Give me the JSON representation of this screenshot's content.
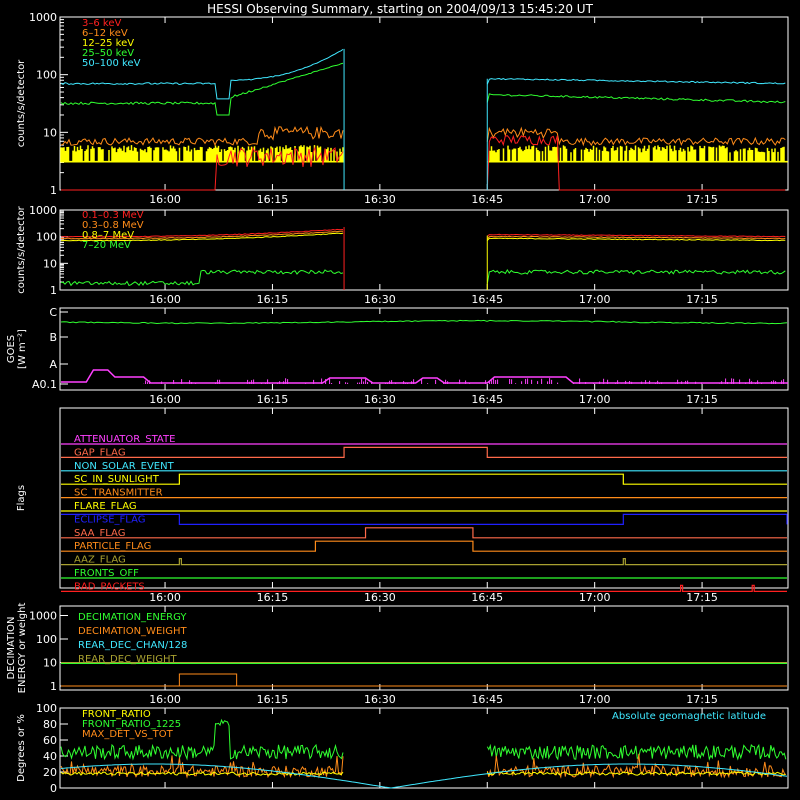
{
  "title": "HESSI Observing Summary, starting on 2004/09/13 15:45:20 UT",
  "colors": {
    "bg": "#000000",
    "axis": "#ffffff",
    "red": "#ff2020",
    "orange": "#ff8c1a",
    "yellow": "#ffff00",
    "green": "#30ff30",
    "cyan": "#40e8ff",
    "magenta": "#ff40ff",
    "blue": "#2020ff",
    "olive": "#a8a030",
    "salmon": "#ff6a4a"
  },
  "chart_data": [
    {
      "id": "lightcurve",
      "type": "line",
      "ylabel": "counts/s/detector",
      "yscale": "log",
      "ylim": [
        1,
        1000
      ],
      "yticks": [
        "1",
        "10",
        "100",
        "1000"
      ],
      "xticks": [
        "16:00",
        "16:15",
        "16:30",
        "16:45",
        "17:00",
        "17:15"
      ],
      "legend": [
        "3–6 keV",
        "6–12 keV",
        "12–25 keV",
        "25–50 keV",
        "50–100 keV"
      ],
      "gap": [
        "16:25",
        "16:45"
      ],
      "series": [
        {
          "name": "3–6 keV",
          "color": "red",
          "level": 1.0
        },
        {
          "name": "6–12 keV",
          "color": "orange",
          "level": 7
        },
        {
          "name": "12–25 keV",
          "color": "yellow",
          "level": 3.5
        },
        {
          "name": "25–50 keV",
          "color": "green",
          "level": 32
        },
        {
          "name": "50–100 keV",
          "color": "cyan",
          "level": 70
        }
      ]
    },
    {
      "id": "highenergy",
      "type": "line",
      "ylabel": "counts/s/detector",
      "yscale": "log",
      "ylim": [
        1,
        1000
      ],
      "yticks": [
        "1",
        "10",
        "100",
        "1000"
      ],
      "xticks": [
        "16:00",
        "16:15",
        "16:30",
        "16:45",
        "17:00",
        "17:15"
      ],
      "legend": [
        "0.1–0.3 MeV",
        "0.3–0.8 MeV",
        "0.8–7 MeV",
        "7–20 MeV"
      ],
      "series": [
        {
          "name": "0.1–0.3 MeV",
          "color": "red",
          "level": 100
        },
        {
          "name": "0.3–0.8 MeV",
          "color": "orange",
          "level": 85
        },
        {
          "name": "0.8–7 MeV",
          "color": "yellow",
          "level": 75
        },
        {
          "name": "7–20 MeV",
          "color": "green",
          "level": 1.6
        }
      ]
    },
    {
      "id": "goes",
      "type": "line",
      "ylabel_lines": [
        "GOES",
        "[W m⁻²]"
      ],
      "yticks": [
        "A0.1",
        "A",
        "B",
        "C"
      ],
      "xticks": [
        "16:00",
        "16:15",
        "16:30",
        "16:45",
        "17:00",
        "17:15"
      ]
    },
    {
      "id": "flags",
      "type": "line",
      "ylabel": "Flags",
      "xticks": [
        "16:00",
        "16:15",
        "16:30",
        "16:45",
        "17:00",
        "17:15"
      ],
      "flags": [
        {
          "label": "ATTENUATOR_STATE",
          "color": "magenta"
        },
        {
          "label": "GAP_FLAG",
          "color": "salmon"
        },
        {
          "label": "NON_SOLAR_EVENT",
          "color": "cyan"
        },
        {
          "label": "SC_IN_SUNLIGHT",
          "color": "yellow"
        },
        {
          "label": "SC_TRANSMITTER",
          "color": "orange"
        },
        {
          "label": "FLARE_FLAG",
          "color": "yellow"
        },
        {
          "label": "ECLIPSE_FLAG",
          "color": "blue"
        },
        {
          "label": "SAA_FLAG",
          "color": "salmon"
        },
        {
          "label": "PARTICLE_FLAG",
          "color": "orange"
        },
        {
          "label": "AAZ_FLAG",
          "color": "olive"
        },
        {
          "label": "FRONTS_OFF",
          "color": "green"
        },
        {
          "label": "BAD_PACKETS",
          "color": "red"
        }
      ]
    },
    {
      "id": "decimation",
      "type": "line",
      "ylabel_lines": [
        "DECIMATION",
        "ENERGY or weight"
      ],
      "yticks": [
        "1",
        "10",
        "100",
        "1000"
      ],
      "xticks": [
        "16:00",
        "16:15",
        "16:30",
        "16:45",
        "17:00",
        "17:15"
      ],
      "legend": [
        "DECIMATION_ENERGY",
        "DECIMATION_WEIGHT",
        "REAR_DEC_CHAN/128",
        "REAR_DEC_WEIGHT"
      ]
    },
    {
      "id": "ratios",
      "type": "line",
      "ylabel": "Degrees or %",
      "ylim": [
        0,
        100
      ],
      "yticks": [
        "0",
        "20",
        "40",
        "60",
        "80",
        "100"
      ],
      "legend": [
        "FRONT_RATIO",
        "FRONT_RATIO_1225",
        "MAX_DET_VS_TOT"
      ],
      "annotation": "Absolute geomagnetic latitude"
    }
  ]
}
